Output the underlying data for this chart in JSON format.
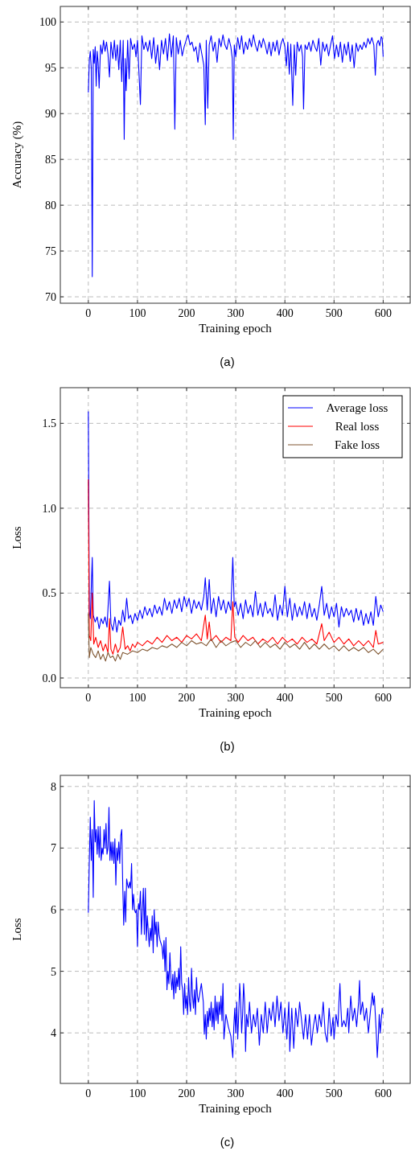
{
  "chart_data": [
    {
      "type": "line",
      "xlabel": "Training epoch",
      "ylabel": "Accuracy (%)",
      "annotations": [
        "(a)"
      ],
      "xlim": [
        -57,
        655
      ],
      "ylim": [
        69.3,
        101.7
      ],
      "xticks": [
        0,
        100,
        200,
        300,
        400,
        500,
        600
      ],
      "yticks": [
        70,
        75,
        80,
        85,
        90,
        95,
        100
      ],
      "grid": true,
      "series": [
        {
          "color": "#0000ff",
          "x": [
            0,
            2,
            4,
            6,
            8,
            10,
            12,
            14,
            16,
            18,
            20,
            22,
            25,
            28,
            31,
            34,
            37,
            40,
            43,
            46,
            50,
            53,
            56,
            59,
            62,
            65,
            68,
            71,
            73,
            75,
            77,
            80,
            83,
            86,
            90,
            94,
            97,
            100,
            103,
            106,
            109,
            113,
            117,
            121,
            125,
            129,
            133,
            137,
            141,
            145,
            149,
            153,
            157,
            161,
            165,
            169,
            173,
            176,
            179,
            183,
            187,
            191,
            195,
            199,
            203,
            207,
            211,
            215,
            219,
            223,
            227,
            231,
            235,
            238,
            240,
            243,
            246,
            250,
            254,
            258,
            262,
            266,
            270,
            274,
            278,
            282,
            286,
            290,
            293,
            295,
            297,
            300,
            304,
            308,
            312,
            316,
            320,
            324,
            328,
            332,
            336,
            340,
            344,
            348,
            352,
            356,
            360,
            364,
            368,
            372,
            376,
            380,
            384,
            388,
            392,
            396,
            400,
            403,
            406,
            409,
            412,
            414,
            416,
            419,
            422,
            425,
            429,
            433,
            436,
            438,
            441,
            445,
            449,
            453,
            457,
            461,
            465,
            469,
            473,
            477,
            481,
            485,
            489,
            493,
            497,
            501,
            505,
            509,
            513,
            517,
            521,
            525,
            529,
            533,
            537,
            541,
            545,
            549,
            553,
            557,
            561,
            565,
            569,
            573,
            577,
            581,
            584,
            587,
            590,
            593,
            596,
            598,
            600
          ],
          "values": [
            92.3,
            95.8,
            96.8,
            95,
            72.2,
            97,
            95.5,
            97.3,
            93,
            96.8,
            95.5,
            92.8,
            97.5,
            96.5,
            98,
            96.8,
            97.8,
            96.5,
            94,
            97.8,
            96,
            98,
            95.8,
            97.5,
            94.8,
            98,
            93.5,
            98,
            87.2,
            96,
            92.5,
            98,
            93.8,
            98.2,
            97,
            97.6,
            96.2,
            98,
            94.5,
            91,
            98.5,
            97,
            97.8,
            96.8,
            98,
            96,
            98.3,
            95.5,
            97.5,
            94.8,
            98,
            96.5,
            98.2,
            95.8,
            98.7,
            96.2,
            98.5,
            88.3,
            98.3,
            96.5,
            98,
            96.3,
            97.3,
            98,
            98.6,
            97.5,
            97.8,
            96.8,
            97.3,
            95.6,
            97.7,
            96.5,
            95.3,
            88.8,
            98,
            90.6,
            97.5,
            98.5,
            96.8,
            97.8,
            95.6,
            98.2,
            97.3,
            98.6,
            97.5,
            97,
            98.2,
            97.3,
            96,
            87.2,
            97.5,
            96.2,
            98.3,
            97,
            98.5,
            96.5,
            97.8,
            97,
            98.2,
            97.3,
            98.6,
            97.5,
            96.8,
            98,
            97.2,
            98.2,
            97.5,
            96.5,
            97.8,
            96.3,
            97.8,
            96.8,
            98,
            96.4,
            97.6,
            98.2,
            97.3,
            95.2,
            97.8,
            94.3,
            97.6,
            94.3,
            90.9,
            97.5,
            94.2,
            97.8,
            96.8,
            97.5,
            96.2,
            90.5,
            97.5,
            97,
            97.8,
            96.8,
            98,
            97.3,
            96.8,
            98.2,
            95.3,
            97.8,
            96.8,
            97.6,
            96.3,
            97.5,
            98.5,
            96,
            97.5,
            96.2,
            97.8,
            95.6,
            97.6,
            96.4,
            97.8,
            95.7,
            97.5,
            95,
            97.7,
            96.8,
            97.5,
            97,
            97.8,
            97.2,
            98.2,
            97.6,
            98.3,
            97.5,
            94.2,
            97.6,
            98,
            97.4,
            98.4,
            98.2,
            96.2
          ]
        }
      ]
    },
    {
      "type": "line",
      "xlabel": "Training epoch",
      "ylabel": "Loss",
      "annotations": [
        "(b)"
      ],
      "xlim": [
        -57,
        655
      ],
      "ylim": [
        -0.057,
        1.71
      ],
      "xticks": [
        0,
        100,
        200,
        300,
        400,
        500,
        600
      ],
      "yticks": [
        {
          "value": 0,
          "label": "0.0"
        },
        {
          "value": 0.5,
          "label": "0.5"
        },
        {
          "value": 1,
          "label": "1.0"
        },
        {
          "value": 1.5,
          "label": "1.5"
        }
      ],
      "grid": true,
      "legend": "top right",
      "series": [
        {
          "name": "Average loss",
          "color": "#0000ff",
          "x": [
            0,
            2,
            4,
            8,
            10,
            14,
            18,
            22,
            26,
            30,
            34,
            38,
            43,
            46,
            50,
            54,
            58,
            62,
            66,
            70,
            74,
            78,
            82,
            86,
            90,
            95,
            100,
            105,
            110,
            115,
            120,
            125,
            130,
            135,
            140,
            145,
            150,
            155,
            160,
            165,
            170,
            175,
            180,
            185,
            190,
            195,
            200,
            205,
            210,
            215,
            220,
            225,
            230,
            235,
            238,
            242,
            246,
            250,
            255,
            260,
            265,
            270,
            275,
            280,
            285,
            290,
            294,
            297,
            300,
            305,
            310,
            315,
            320,
            325,
            330,
            335,
            340,
            345,
            350,
            355,
            360,
            365,
            370,
            375,
            380,
            385,
            390,
            395,
            400,
            405,
            410,
            415,
            420,
            425,
            430,
            435,
            440,
            445,
            450,
            455,
            460,
            465,
            470,
            475,
            480,
            485,
            490,
            495,
            500,
            505,
            510,
            515,
            520,
            525,
            530,
            535,
            540,
            545,
            550,
            555,
            560,
            565,
            570,
            575,
            580,
            585,
            590,
            595,
            600
          ],
          "values": [
            1.57,
            0.39,
            0.35,
            0.71,
            0.37,
            0.33,
            0.36,
            0.29,
            0.35,
            0.32,
            0.36,
            0.3,
            0.57,
            0.32,
            0.28,
            0.36,
            0.27,
            0.34,
            0.31,
            0.4,
            0.33,
            0.47,
            0.35,
            0.37,
            0.32,
            0.38,
            0.34,
            0.4,
            0.35,
            0.42,
            0.37,
            0.41,
            0.36,
            0.43,
            0.38,
            0.42,
            0.37,
            0.47,
            0.4,
            0.45,
            0.38,
            0.46,
            0.41,
            0.47,
            0.39,
            0.48,
            0.42,
            0.47,
            0.38,
            0.46,
            0.41,
            0.45,
            0.4,
            0.48,
            0.59,
            0.4,
            0.58,
            0.38,
            0.47,
            0.36,
            0.48,
            0.4,
            0.46,
            0.38,
            0.45,
            0.4,
            0.71,
            0.42,
            0.45,
            0.37,
            0.44,
            0.35,
            0.46,
            0.38,
            0.43,
            0.36,
            0.51,
            0.37,
            0.44,
            0.36,
            0.45,
            0.38,
            0.41,
            0.36,
            0.49,
            0.34,
            0.43,
            0.37,
            0.54,
            0.36,
            0.47,
            0.34,
            0.44,
            0.36,
            0.42,
            0.37,
            0.45,
            0.35,
            0.44,
            0.36,
            0.41,
            0.34,
            0.43,
            0.54,
            0.37,
            0.44,
            0.35,
            0.42,
            0.36,
            0.44,
            0.3,
            0.42,
            0.36,
            0.41,
            0.37,
            0.4,
            0.33,
            0.41,
            0.34,
            0.4,
            0.31,
            0.38,
            0.32,
            0.39,
            0.31,
            0.48,
            0.36,
            0.43,
            0.39
          ]
        },
        {
          "name": "Real loss",
          "color": "#ff0000",
          "x": [
            0,
            2,
            5,
            8,
            11,
            15,
            20,
            25,
            30,
            35,
            40,
            43,
            46,
            50,
            55,
            60,
            65,
            70,
            75,
            80,
            85,
            90,
            95,
            100,
            110,
            120,
            130,
            140,
            150,
            160,
            170,
            180,
            190,
            200,
            210,
            220,
            230,
            238,
            242,
            246,
            250,
            260,
            270,
            280,
            290,
            294,
            298,
            305,
            315,
            325,
            335,
            345,
            355,
            365,
            375,
            385,
            395,
            405,
            415,
            425,
            435,
            445,
            455,
            465,
            475,
            480,
            490,
            500,
            510,
            520,
            530,
            540,
            550,
            560,
            570,
            580,
            585,
            590,
            600
          ],
          "values": [
            1.17,
            0.25,
            0.22,
            0.5,
            0.2,
            0.24,
            0.18,
            0.22,
            0.16,
            0.2,
            0.15,
            0.35,
            0.17,
            0.14,
            0.2,
            0.15,
            0.18,
            0.3,
            0.17,
            0.19,
            0.16,
            0.2,
            0.18,
            0.21,
            0.19,
            0.22,
            0.2,
            0.24,
            0.21,
            0.25,
            0.22,
            0.24,
            0.21,
            0.25,
            0.23,
            0.26,
            0.22,
            0.37,
            0.23,
            0.33,
            0.22,
            0.25,
            0.21,
            0.24,
            0.22,
            0.45,
            0.24,
            0.21,
            0.25,
            0.22,
            0.24,
            0.2,
            0.23,
            0.21,
            0.24,
            0.2,
            0.24,
            0.21,
            0.23,
            0.2,
            0.24,
            0.21,
            0.23,
            0.2,
            0.32,
            0.22,
            0.27,
            0.21,
            0.24,
            0.2,
            0.23,
            0.19,
            0.22,
            0.19,
            0.22,
            0.18,
            0.28,
            0.2,
            0.21
          ]
        },
        {
          "name": "Fake loss",
          "color": "#7f5530",
          "x": [
            0,
            2,
            5,
            10,
            15,
            20,
            25,
            30,
            35,
            40,
            45,
            50,
            55,
            60,
            65,
            70,
            80,
            90,
            100,
            110,
            120,
            130,
            140,
            150,
            160,
            170,
            180,
            190,
            200,
            210,
            220,
            230,
            240,
            250,
            260,
            270,
            280,
            290,
            300,
            310,
            320,
            330,
            340,
            350,
            360,
            370,
            380,
            390,
            400,
            410,
            420,
            430,
            440,
            450,
            460,
            470,
            480,
            490,
            500,
            510,
            520,
            530,
            540,
            550,
            560,
            570,
            580,
            590,
            600
          ],
          "values": [
            0.38,
            0.12,
            0.18,
            0.14,
            0.12,
            0.16,
            0.11,
            0.14,
            0.1,
            0.15,
            0.12,
            0.13,
            0.1,
            0.14,
            0.11,
            0.15,
            0.14,
            0.16,
            0.15,
            0.17,
            0.16,
            0.18,
            0.17,
            0.19,
            0.18,
            0.2,
            0.18,
            0.21,
            0.19,
            0.22,
            0.2,
            0.21,
            0.19,
            0.23,
            0.18,
            0.22,
            0.19,
            0.21,
            0.22,
            0.18,
            0.21,
            0.19,
            0.22,
            0.18,
            0.21,
            0.18,
            0.2,
            0.17,
            0.21,
            0.18,
            0.2,
            0.17,
            0.21,
            0.17,
            0.2,
            0.17,
            0.2,
            0.17,
            0.19,
            0.16,
            0.19,
            0.16,
            0.18,
            0.16,
            0.18,
            0.15,
            0.17,
            0.14,
            0.17
          ]
        }
      ]
    },
    {
      "type": "line",
      "xlabel": "Training epoch",
      "ylabel": "Loss",
      "annotations": [
        "(c)"
      ],
      "xlim": [
        -57,
        655
      ],
      "ylim": [
        3.18,
        8.18
      ],
      "xticks": [
        0,
        100,
        200,
        300,
        400,
        500,
        600
      ],
      "yticks": [
        4,
        5,
        6,
        7,
        8
      ],
      "grid": true,
      "series": [
        {
          "color": "#0000ff",
          "x": [
            0,
            2,
            4,
            6,
            8,
            10,
            12,
            14,
            16,
            18,
            20,
            22,
            24,
            26,
            28,
            30,
            32,
            34,
            36,
            38,
            40,
            42,
            44,
            46,
            48,
            50,
            52,
            54,
            56,
            58,
            60,
            62,
            64,
            66,
            68,
            70,
            72,
            74,
            76,
            78,
            80,
            82,
            84,
            86,
            88,
            90,
            92,
            94,
            96,
            98,
            100,
            102,
            104,
            106,
            108,
            110,
            112,
            114,
            116,
            118,
            120,
            124,
            126,
            128,
            130,
            132,
            134,
            136,
            138,
            140,
            142,
            144,
            146,
            150,
            152,
            154,
            156,
            158,
            160,
            162,
            164,
            166,
            168,
            170,
            172,
            174,
            176,
            178,
            180,
            182,
            184,
            186,
            188,
            190,
            192,
            194,
            196,
            198,
            200,
            202,
            204,
            206,
            208,
            210,
            212,
            214,
            216,
            218,
            220,
            222,
            224,
            228,
            230,
            234,
            236,
            238,
            240,
            242,
            244,
            246,
            248,
            250,
            252,
            254,
            256,
            258,
            260,
            262,
            264,
            266,
            268,
            270,
            272,
            274,
            276,
            280,
            285,
            290,
            294,
            296,
            298,
            300,
            302,
            304,
            306,
            308,
            310,
            312,
            314,
            316,
            318,
            320,
            322,
            325,
            328,
            332,
            336,
            340,
            344,
            348,
            352,
            356,
            360,
            364,
            368,
            372,
            376,
            380,
            384,
            388,
            392,
            396,
            400,
            404,
            408,
            410,
            414,
            418,
            422,
            426,
            430,
            434,
            438,
            442,
            446,
            450,
            454,
            458,
            462,
            466,
            470,
            474,
            478,
            482,
            486,
            490,
            494,
            498,
            500,
            504,
            508,
            510,
            512,
            514,
            516,
            520,
            524,
            528,
            530,
            534,
            538,
            542,
            546,
            550,
            552,
            554,
            558,
            562,
            566,
            570,
            574,
            578,
            580,
            582,
            584,
            586,
            588,
            590,
            592,
            594,
            596,
            598,
            600
          ],
          "values": [
            5.95,
            6.8,
            7.5,
            6.8,
            7.3,
            6.2,
            7.77,
            7.1,
            7.3,
            6.9,
            7.35,
            6.85,
            7.35,
            6.8,
            7,
            6.9,
            7.3,
            7,
            7.4,
            6.9,
            7,
            7.66,
            6.8,
            7.1,
            6.8,
            7.1,
            6.75,
            7.15,
            6.4,
            7,
            6.8,
            7.1,
            6.75,
            7.2,
            7.3,
            6.4,
            5.75,
            6.3,
            5.8,
            6.5,
            6.4,
            6.35,
            6.45,
            6.35,
            6.75,
            6,
            6.25,
            6,
            5.95,
            6,
            5.4,
            6.1,
            6,
            6.3,
            5.6,
            6,
            6.35,
            5.6,
            6.35,
            5.5,
            5.9,
            5.4,
            5.7,
            5.5,
            5.9,
            5.3,
            6,
            5.6,
            5.8,
            5.4,
            5.8,
            5.6,
            5.5,
            5.4,
            5.2,
            5.5,
            5,
            5.55,
            4.7,
            5,
            4.8,
            5.3,
            4.9,
            4.7,
            4.95,
            4.55,
            5,
            4.65,
            4.9,
            4.75,
            5.05,
            4.7,
            5.4,
            4.8,
            4.7,
            4.3,
            4.8,
            4.4,
            4.6,
            4.3,
            4.9,
            4.5,
            4.35,
            5.05,
            4.6,
            4.4,
            4.7,
            4.3,
            4.9,
            4.6,
            4.5,
            4.7,
            4.8,
            4.5,
            3.98,
            4.3,
            3.9,
            4.35,
            4.1,
            4.4,
            4.2,
            4.5,
            4.1,
            4.4,
            4.05,
            4.6,
            4.2,
            4.5,
            4.15,
            4.5,
            4.3,
            4.6,
            4.2,
            4.8,
            3.9,
            4.3,
            4.1,
            3.95,
            3.6,
            4.1,
            4.4,
            4,
            4.5,
            3.9,
            4.3,
            4.8,
            4.5,
            4,
            4.3,
            4.8,
            4.5,
            3.7,
            4.3,
            4.1,
            4.5,
            4,
            4.3,
            4.1,
            4.4,
            3.8,
            4.3,
            4,
            4.5,
            4,
            4.4,
            4.2,
            4.5,
            4.1,
            4.6,
            4.2,
            4.5,
            4,
            4.4,
            3.9,
            4.5,
            3.7,
            4.4,
            3.75,
            4.4,
            4.1,
            4.5,
            4.2,
            3.9,
            4.3,
            3.9,
            4.3,
            3.8,
            4.1,
            4.3,
            4,
            4.3,
            4.1,
            4.5,
            4,
            3.85,
            4.4,
            3.95,
            4.25,
            3.9,
            4.3,
            4.1,
            4.5,
            4.8,
            4.4,
            4.1,
            4.2,
            4.1,
            4.4,
            4,
            4.6,
            4.2,
            4.4,
            4.1,
            4.5,
            4.85,
            4.3,
            4.5,
            4.2,
            4.4,
            4,
            4.35,
            4.65,
            4.45,
            4.6,
            4.3,
            4,
            3.6,
            3.9,
            4.3,
            4,
            4.2,
            4.4,
            4.3
          ]
        }
      ]
    }
  ]
}
